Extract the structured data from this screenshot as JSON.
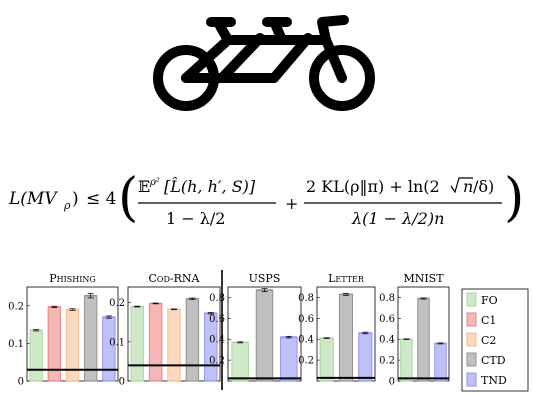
{
  "figure": {
    "icon": "tandem-bicycle-icon",
    "equation": {
      "lhs": "L(MV",
      "lhs_sub": "ρ",
      "lhs_close": ")",
      "relation": "≤ 4",
      "frac1_num": "𝔼",
      "frac1_num_sup": "ρ²",
      "frac1_num_rest": "[L̂(h, h′, S)]",
      "frac1_den": "1 − λ/2",
      "plus": "+",
      "frac2_num_a": "2 KL(ρ‖π) + ln(2",
      "frac2_num_sqrt": "n",
      "frac2_num_b": "/δ)",
      "frac2_den": "λ(1 − λ/2)n"
    }
  },
  "legend": {
    "entries": [
      {
        "label": "FO",
        "color": "#a8d59a"
      },
      {
        "label": "C1",
        "color": "#ec7a7a"
      },
      {
        "label": "C2",
        "color": "#f6b98a"
      },
      {
        "label": "CTD",
        "color": "#8c8c8c"
      },
      {
        "label": "TND",
        "color": "#8a8cf0"
      }
    ]
  },
  "chart_data": [
    {
      "type": "bar",
      "title": "Phishing",
      "categories": [
        "FO",
        "C1",
        "C2",
        "CTD",
        "TND"
      ],
      "values": [
        0.135,
        0.197,
        0.19,
        0.227,
        0.17
      ],
      "errors": [
        0.002,
        0.002,
        0.002,
        0.006,
        0.003
      ],
      "reference_line": 0.03,
      "ylim": [
        0,
        0.25
      ],
      "yticks": [
        "0",
        "0.1",
        "0.2"
      ],
      "ytick_values": [
        0,
        0.1,
        0.2
      ]
    },
    {
      "type": "bar",
      "title": "Cod-RNA",
      "categories": [
        "FO",
        "C1",
        "C2",
        "CTD",
        "TND"
      ],
      "values": [
        0.19,
        0.198,
        0.183,
        0.21,
        0.173
      ],
      "errors": [
        0.001,
        0.001,
        0.001,
        0.002,
        0.002
      ],
      "reference_line": 0.04,
      "ylim": [
        0,
        0.24
      ],
      "yticks": [
        "0",
        "0.1",
        "0.2"
      ],
      "ytick_values": [
        0,
        0.1,
        0.2
      ]
    },
    {
      "type": "bar",
      "title": "USPS",
      "categories": [
        "FO",
        "CTD",
        "TND"
      ],
      "values": [
        0.37,
        0.87,
        0.42
      ],
      "errors": [
        0.005,
        0.015,
        0.008
      ],
      "reference_line": 0.025,
      "ylim": [
        0,
        0.9
      ],
      "yticks": [
        "0.2",
        "0.4",
        "0.6",
        "0.8"
      ],
      "ytick_values": [
        0.2,
        0.4,
        0.6,
        0.8
      ]
    },
    {
      "type": "bar",
      "title": "Letter",
      "categories": [
        "FO",
        "CTD",
        "TND"
      ],
      "values": [
        0.41,
        0.83,
        0.46
      ],
      "errors": [
        0.004,
        0.01,
        0.008
      ],
      "reference_line": 0.03,
      "ylim": [
        0,
        0.9
      ],
      "yticks": [
        "0.2",
        "0.4",
        "0.6",
        "0.8"
      ],
      "ytick_values": [
        0.2,
        0.4,
        0.6,
        0.8
      ]
    },
    {
      "type": "bar",
      "title": "MNIST",
      "categories": [
        "FO",
        "CTD",
        "TND"
      ],
      "values": [
        0.4,
        0.79,
        0.36
      ],
      "errors": [
        0.003,
        0.006,
        0.005
      ],
      "reference_line": 0.025,
      "ylim": [
        0,
        0.9
      ],
      "yticks": [
        "0",
        "0.2",
        "0.4",
        "0.6",
        "0.8"
      ],
      "ytick_values": [
        0,
        0.2,
        0.4,
        0.6,
        0.8
      ]
    }
  ]
}
